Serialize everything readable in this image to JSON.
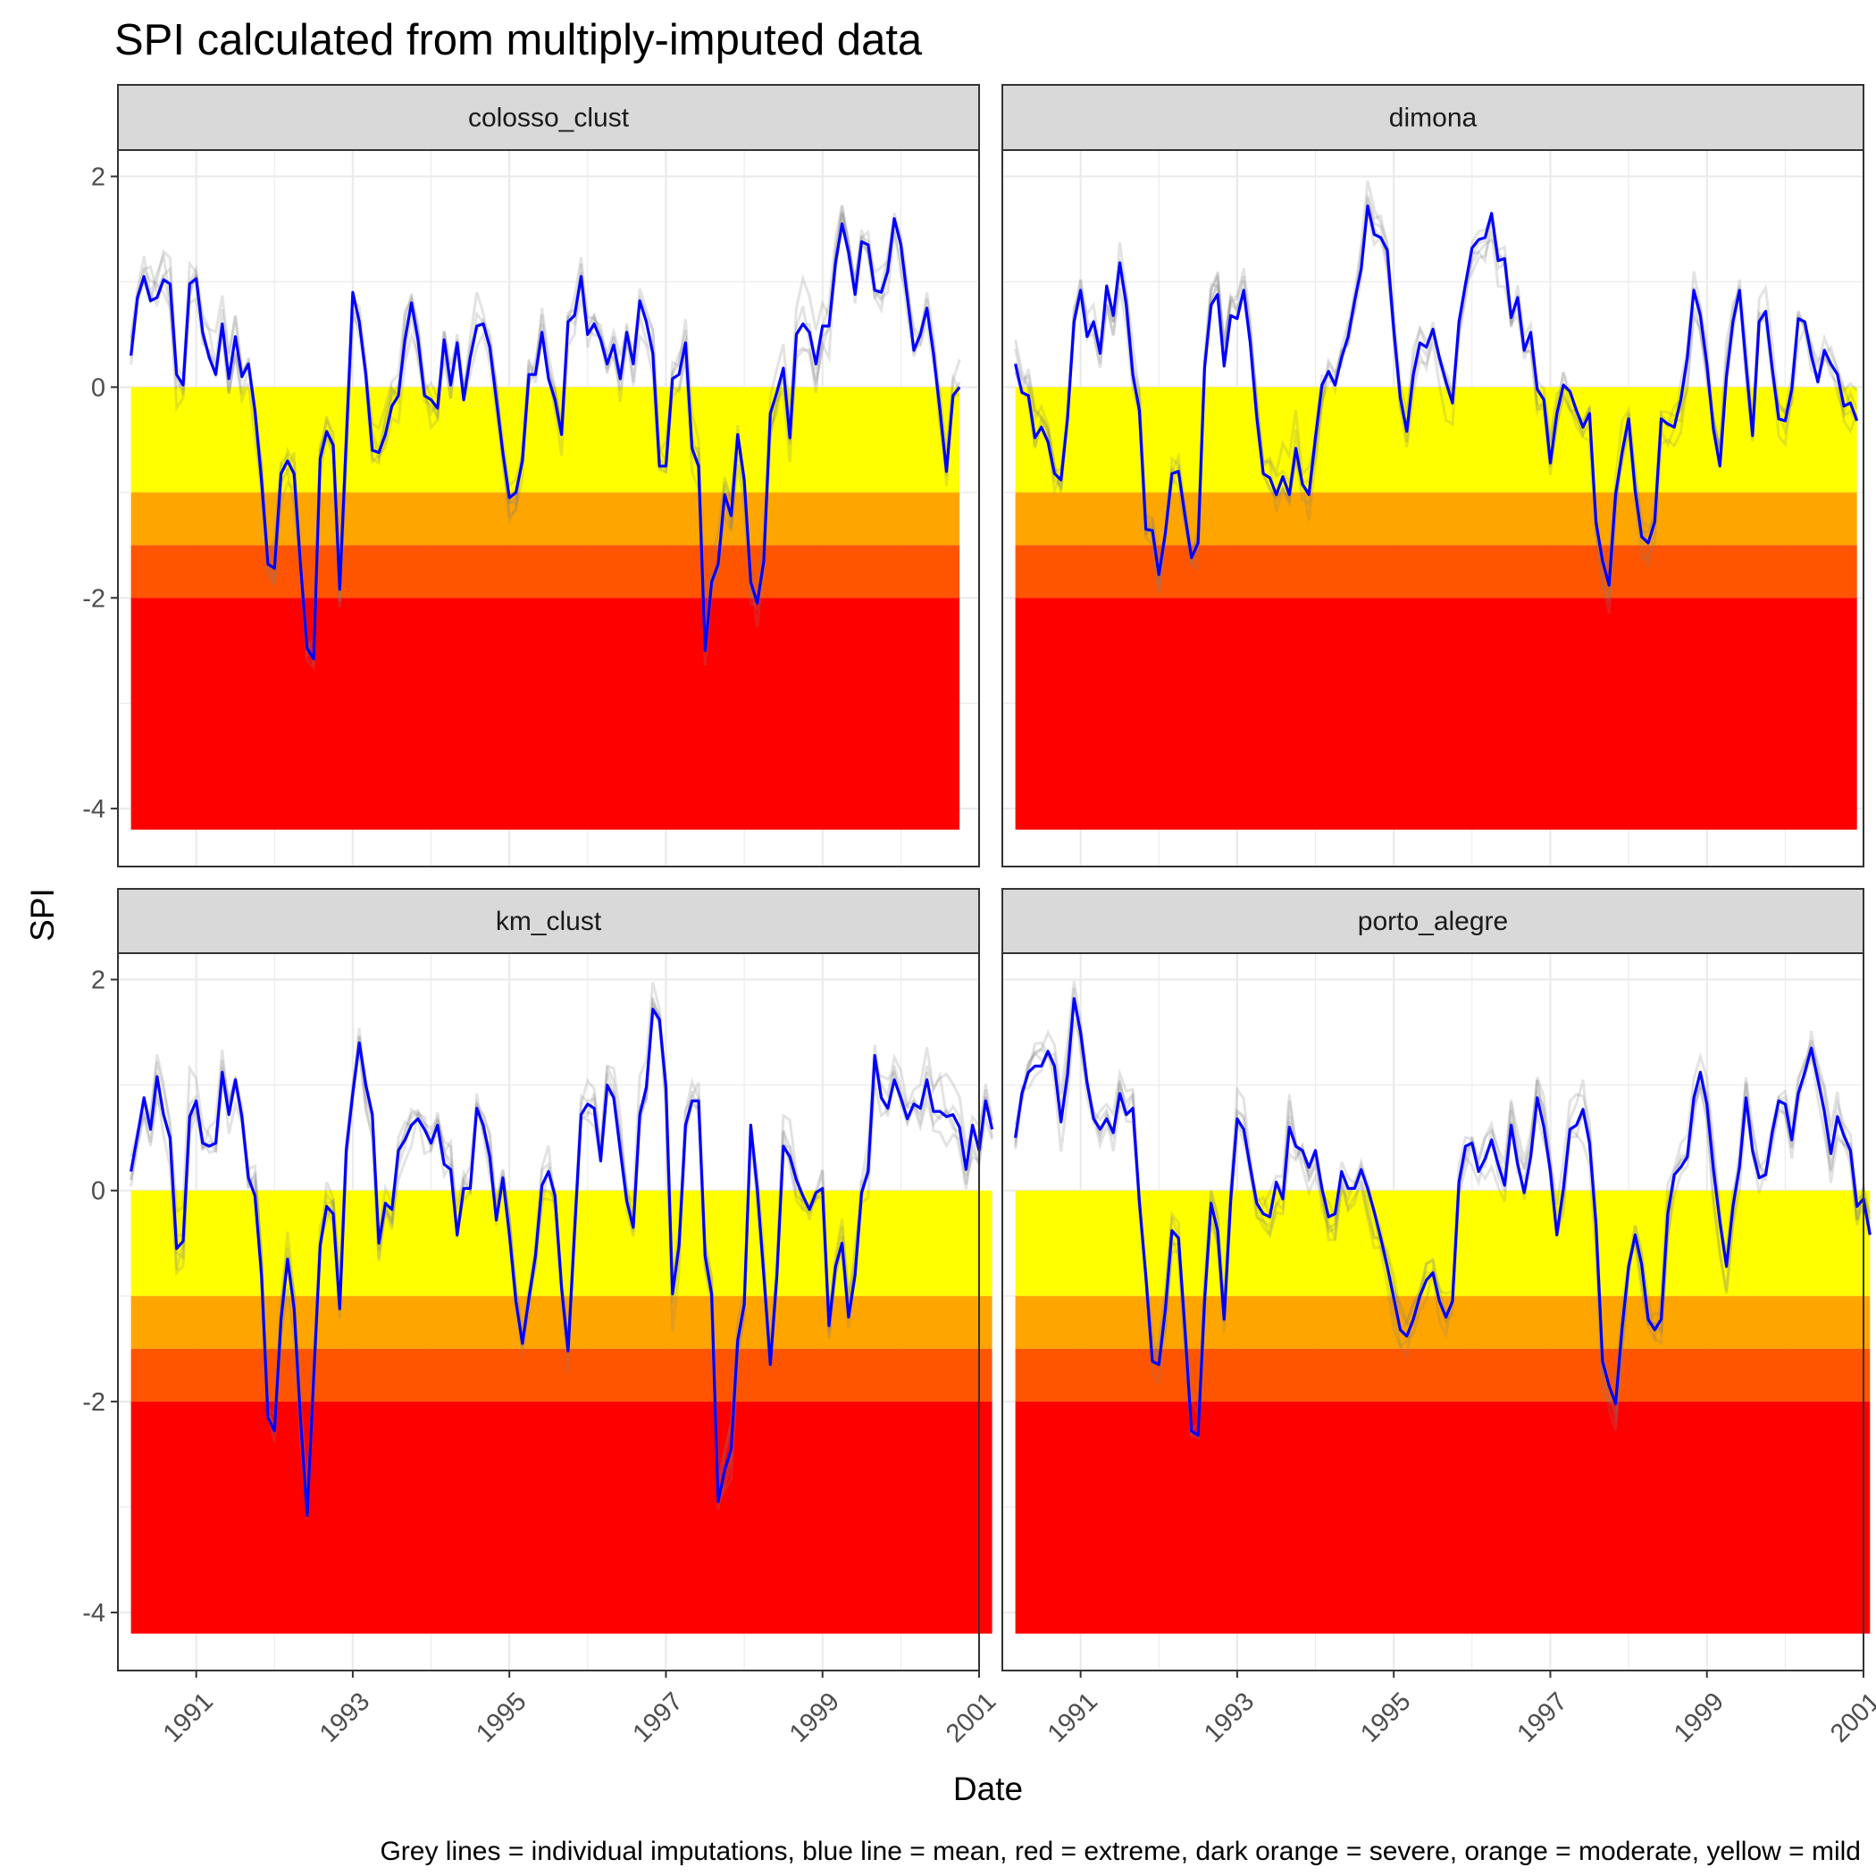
{
  "chart_data": {
    "type": "line",
    "title": "SPI calculated from multiply-imputed data",
    "xlabel": "Date",
    "ylabel": "SPI",
    "caption": "Grey lines = individual imputations, blue line = mean, red = extreme, dark orange = severe, orange = moderate, yellow = mild",
    "x_ticks": [
      "1991",
      "1993",
      "1995",
      "1997",
      "1999",
      "2001"
    ],
    "y_ticks": [
      "2",
      "0",
      "-2",
      "-4"
    ],
    "xlim": [
      "1990-01",
      "2001-01"
    ],
    "ylim": [
      -4.55,
      2.25
    ],
    "start_date": "1990-03",
    "end_date": "2000-12",
    "grid": true,
    "bands": [
      {
        "label": "mild",
        "from": 0,
        "to": -1,
        "color": "#FFFF00"
      },
      {
        "label": "moderate",
        "from": -1,
        "to": -1.5,
        "color": "#FFA500"
      },
      {
        "label": "severe",
        "from": -1.5,
        "to": -2,
        "color": "#FF5500"
      },
      {
        "label": "extreme",
        "from": -2,
        "to": -4.2,
        "color": "#FF0000"
      }
    ],
    "colors": {
      "mean": "#0000FF",
      "imputation": "#808080"
    },
    "facets": [
      {
        "name": "colosso_clust",
        "mean": [
          0.3,
          0.85,
          1.05,
          0.82,
          0.85,
          1.02,
          0.98,
          0.12,
          0.02,
          0.98,
          1.03,
          0.52,
          0.28,
          0.12,
          0.6,
          0.08,
          0.48,
          0.1,
          0.22,
          -0.22,
          -0.88,
          -1.68,
          -1.72,
          -0.82,
          -0.7,
          -0.82,
          -1.7,
          -2.48,
          -2.58,
          -0.68,
          -0.42,
          -0.55,
          -1.92,
          -0.5,
          0.9,
          0.62,
          0.12,
          -0.6,
          -0.62,
          -0.45,
          -0.18,
          -0.08,
          0.45,
          0.8,
          0.45,
          -0.08,
          -0.12,
          -0.2,
          0.45,
          0.02,
          0.42,
          -0.12,
          0.28,
          0.58,
          0.6,
          0.38,
          -0.12,
          -0.62,
          -1.05,
          -1.0,
          -0.7,
          0.12,
          0.12,
          0.52,
          0.08,
          -0.12,
          -0.45,
          0.62,
          0.68,
          1.05,
          0.5,
          0.6,
          0.45,
          0.22,
          0.4,
          0.08,
          0.52,
          0.22,
          0.82,
          0.62,
          0.32,
          -0.75,
          -0.75,
          0.08,
          0.12,
          0.42,
          -0.58,
          -0.75,
          -2.5,
          -1.85,
          -1.68,
          -1.02,
          -1.22,
          -0.45,
          -0.88,
          -1.85,
          -2.05,
          -1.65,
          -0.25,
          -0.05,
          0.18,
          -0.48,
          0.5,
          0.6,
          0.52,
          0.22,
          0.58,
          0.58,
          1.18,
          1.55,
          1.28,
          0.88,
          1.38,
          1.35,
          0.92,
          0.9,
          1.1,
          1.6,
          1.35,
          0.85,
          0.35,
          0.5,
          0.75,
          0.32,
          -0.22,
          -0.8,
          -0.08,
          0.0
        ]
      },
      {
        "name": "dimona",
        "mean": [
          0.22,
          -0.05,
          -0.08,
          -0.48,
          -0.38,
          -0.52,
          -0.82,
          -0.88,
          -0.3,
          0.62,
          0.92,
          0.48,
          0.62,
          0.32,
          0.96,
          0.68,
          1.18,
          0.78,
          0.12,
          -0.22,
          -1.35,
          -1.36,
          -1.78,
          -1.38,
          -0.82,
          -0.8,
          -1.22,
          -1.62,
          -1.48,
          0.18,
          0.78,
          0.88,
          0.2,
          0.68,
          0.65,
          0.92,
          0.42,
          -0.28,
          -0.82,
          -0.86,
          -1.02,
          -0.85,
          -1.02,
          -0.58,
          -0.92,
          -1.02,
          -0.48,
          0.02,
          0.15,
          0.02,
          0.28,
          0.48,
          0.82,
          1.12,
          1.72,
          1.45,
          1.42,
          1.3,
          0.55,
          -0.1,
          -0.42,
          0.12,
          0.42,
          0.38,
          0.55,
          0.28,
          0.05,
          -0.15,
          0.62,
          0.98,
          1.32,
          1.4,
          1.42,
          1.65,
          1.2,
          1.22,
          0.66,
          0.85,
          0.35,
          0.52,
          -0.02,
          -0.12,
          -0.72,
          -0.25,
          0.02,
          -0.04,
          -0.22,
          -0.38,
          -0.25,
          -1.28,
          -1.65,
          -1.88,
          -1.02,
          -0.62,
          -0.3,
          -0.98,
          -1.42,
          -1.48,
          -1.28,
          -0.3,
          -0.35,
          -0.38,
          -0.12,
          0.28,
          0.92,
          0.68,
          0.22,
          -0.4,
          -0.75,
          0.1,
          0.62,
          0.92,
          0.22,
          -0.46,
          0.62,
          0.72,
          0.18,
          -0.3,
          -0.32,
          -0.02,
          0.65,
          0.62,
          0.3,
          0.05,
          0.35,
          0.22,
          0.12,
          -0.18,
          -0.15,
          -0.32
        ]
      },
      {
        "name": "km_clust",
        "mean": [
          0.18,
          0.52,
          0.88,
          0.58,
          1.08,
          0.72,
          0.5,
          -0.55,
          -0.48,
          0.7,
          0.85,
          0.45,
          0.42,
          0.45,
          1.12,
          0.72,
          1.05,
          0.7,
          0.12,
          -0.05,
          -0.8,
          -2.15,
          -2.28,
          -1.22,
          -0.65,
          -1.12,
          -2.18,
          -3.08,
          -1.78,
          -0.52,
          -0.15,
          -0.22,
          -1.12,
          0.38,
          0.92,
          1.4,
          1.0,
          0.72,
          -0.5,
          -0.12,
          -0.18,
          0.38,
          0.48,
          0.62,
          0.68,
          0.58,
          0.45,
          0.62,
          0.25,
          0.2,
          -0.42,
          0.02,
          0.02,
          0.78,
          0.62,
          0.32,
          -0.28,
          0.12,
          -0.42,
          -1.05,
          -1.45,
          -1.02,
          -0.62,
          0.05,
          0.18,
          -0.05,
          -0.92,
          -1.52,
          -0.38,
          0.72,
          0.82,
          0.78,
          0.28,
          1.0,
          0.88,
          0.38,
          -0.1,
          -0.35,
          0.72,
          0.98,
          1.72,
          1.62,
          0.98,
          -0.98,
          -0.52,
          0.62,
          0.85,
          0.85,
          -0.62,
          -0.98,
          -2.95,
          -2.65,
          -2.45,
          -1.42,
          -1.08,
          0.62,
          0.02,
          -0.8,
          -1.65,
          -0.82,
          0.42,
          0.32,
          0.1,
          -0.05,
          -0.18,
          -0.02,
          0.02,
          -1.28,
          -0.72,
          -0.5,
          -1.2,
          -0.8,
          -0.02,
          0.18,
          1.28,
          0.88,
          0.78,
          1.05,
          0.88,
          0.68,
          0.82,
          0.78,
          1.05,
          0.75,
          0.75,
          0.7,
          0.72,
          0.6,
          0.2,
          0.62,
          0.38,
          0.85,
          0.58
        ]
      },
      {
        "name": "porto_alegre",
        "mean": [
          0.5,
          0.92,
          1.12,
          1.18,
          1.18,
          1.32,
          1.18,
          0.65,
          1.1,
          1.82,
          1.5,
          1.02,
          0.68,
          0.58,
          0.68,
          0.55,
          0.92,
          0.72,
          0.78,
          -0.1,
          -0.82,
          -1.62,
          -1.65,
          -1.12,
          -0.38,
          -0.45,
          -1.32,
          -2.28,
          -2.32,
          -1.05,
          -0.12,
          -0.38,
          -1.22,
          -0.1,
          0.68,
          0.58,
          0.22,
          -0.12,
          -0.22,
          -0.25,
          0.08,
          -0.08,
          0.6,
          0.42,
          0.38,
          0.22,
          0.38,
          0.02,
          -0.25,
          -0.22,
          0.18,
          0.02,
          0.02,
          0.2,
          0.02,
          -0.2,
          -0.45,
          -0.72,
          -1.02,
          -1.32,
          -1.38,
          -1.22,
          -1.0,
          -0.85,
          -0.78,
          -1.05,
          -1.2,
          -1.05,
          0.08,
          0.42,
          0.45,
          0.18,
          0.3,
          0.48,
          0.25,
          0.05,
          0.62,
          0.25,
          -0.02,
          0.32,
          0.88,
          0.6,
          0.18,
          -0.42,
          0.02,
          0.58,
          0.62,
          0.77,
          0.45,
          -0.32,
          -1.62,
          -1.85,
          -2.02,
          -1.3,
          -0.72,
          -0.42,
          -0.7,
          -1.22,
          -1.32,
          -1.22,
          -0.22,
          0.15,
          0.22,
          0.32,
          0.88,
          1.12,
          0.82,
          0.2,
          -0.3,
          -0.72,
          -0.15,
          0.22,
          0.88,
          0.38,
          0.12,
          0.15,
          0.55,
          0.85,
          0.82,
          0.48,
          0.92,
          1.12,
          1.35,
          1.05,
          0.75,
          0.35,
          0.7,
          0.52,
          0.38,
          -0.15,
          -0.08,
          -0.42
        ]
      }
    ]
  }
}
